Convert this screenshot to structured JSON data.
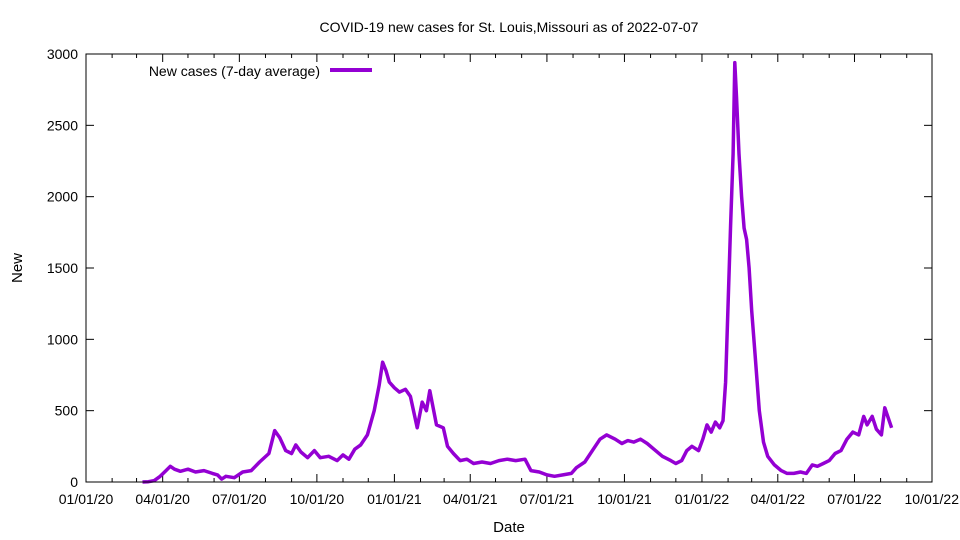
{
  "chart_data": {
    "type": "line",
    "title": "COVID-19 new cases for St. Louis,Missouri as of 2022-07-07",
    "xlabel": "Date",
    "ylabel": "New",
    "xlim": [
      "2020-01-01",
      "2022-10-01"
    ],
    "ylim": [
      0,
      3000
    ],
    "x_ticks": [
      "01/01/20",
      "04/01/20",
      "07/01/20",
      "10/01/20",
      "01/01/21",
      "04/01/21",
      "07/01/21",
      "10/01/21",
      "01/01/22",
      "04/01/22",
      "07/01/22",
      "10/01/22"
    ],
    "y_ticks": [
      0,
      500,
      1000,
      1500,
      2000,
      2500,
      3000
    ],
    "grid": false,
    "legend": {
      "position": "top-left"
    },
    "series": [
      {
        "name": "New cases (7-day average)",
        "color": "#9400d3",
        "points": [
          [
            "2020-03-08",
            0
          ],
          [
            "2020-03-15",
            2
          ],
          [
            "2020-03-22",
            10
          ],
          [
            "2020-03-29",
            40
          ],
          [
            "2020-04-05",
            80
          ],
          [
            "2020-04-10",
            110
          ],
          [
            "2020-04-15",
            90
          ],
          [
            "2020-04-22",
            75
          ],
          [
            "2020-05-01",
            90
          ],
          [
            "2020-05-10",
            70
          ],
          [
            "2020-05-20",
            80
          ],
          [
            "2020-05-30",
            60
          ],
          [
            "2020-06-05",
            50
          ],
          [
            "2020-06-10",
            20
          ],
          [
            "2020-06-15",
            40
          ],
          [
            "2020-06-25",
            30
          ],
          [
            "2020-07-05",
            70
          ],
          [
            "2020-07-15",
            80
          ],
          [
            "2020-07-25",
            140
          ],
          [
            "2020-08-05",
            200
          ],
          [
            "2020-08-12",
            360
          ],
          [
            "2020-08-18",
            310
          ],
          [
            "2020-08-25",
            220
          ],
          [
            "2020-09-01",
            200
          ],
          [
            "2020-09-06",
            260
          ],
          [
            "2020-09-12",
            210
          ],
          [
            "2020-09-20",
            170
          ],
          [
            "2020-09-28",
            220
          ],
          [
            "2020-10-05",
            170
          ],
          [
            "2020-10-15",
            180
          ],
          [
            "2020-10-25",
            150
          ],
          [
            "2020-11-01",
            190
          ],
          [
            "2020-11-08",
            160
          ],
          [
            "2020-11-15",
            230
          ],
          [
            "2020-11-22",
            260
          ],
          [
            "2020-11-30",
            330
          ],
          [
            "2020-12-08",
            500
          ],
          [
            "2020-12-14",
            680
          ],
          [
            "2020-12-18",
            840
          ],
          [
            "2020-12-22",
            780
          ],
          [
            "2020-12-26",
            700
          ],
          [
            "2021-01-01",
            660
          ],
          [
            "2021-01-07",
            630
          ],
          [
            "2021-01-14",
            650
          ],
          [
            "2021-01-20",
            600
          ],
          [
            "2021-01-28",
            380
          ],
          [
            "2021-02-03",
            560
          ],
          [
            "2021-02-08",
            500
          ],
          [
            "2021-02-12",
            640
          ],
          [
            "2021-02-20",
            400
          ],
          [
            "2021-02-28",
            380
          ],
          [
            "2021-03-05",
            250
          ],
          [
            "2021-03-12",
            200
          ],
          [
            "2021-03-20",
            150
          ],
          [
            "2021-03-28",
            160
          ],
          [
            "2021-04-05",
            130
          ],
          [
            "2021-04-15",
            140
          ],
          [
            "2021-04-25",
            130
          ],
          [
            "2021-05-05",
            150
          ],
          [
            "2021-05-15",
            160
          ],
          [
            "2021-05-25",
            150
          ],
          [
            "2021-06-05",
            160
          ],
          [
            "2021-06-12",
            80
          ],
          [
            "2021-06-22",
            70
          ],
          [
            "2021-07-01",
            50
          ],
          [
            "2021-07-10",
            40
          ],
          [
            "2021-07-20",
            50
          ],
          [
            "2021-07-30",
            60
          ],
          [
            "2021-08-05",
            100
          ],
          [
            "2021-08-15",
            140
          ],
          [
            "2021-08-25",
            230
          ],
          [
            "2021-09-02",
            300
          ],
          [
            "2021-09-10",
            330
          ],
          [
            "2021-09-20",
            300
          ],
          [
            "2021-09-28",
            270
          ],
          [
            "2021-10-05",
            290
          ],
          [
            "2021-10-12",
            280
          ],
          [
            "2021-10-20",
            300
          ],
          [
            "2021-10-28",
            270
          ],
          [
            "2021-11-05",
            230
          ],
          [
            "2021-11-15",
            180
          ],
          [
            "2021-11-25",
            150
          ],
          [
            "2021-12-01",
            130
          ],
          [
            "2021-12-08",
            150
          ],
          [
            "2021-12-14",
            220
          ],
          [
            "2021-12-20",
            250
          ],
          [
            "2021-12-28",
            220
          ],
          [
            "2022-01-02",
            300
          ],
          [
            "2022-01-07",
            400
          ],
          [
            "2022-01-12",
            350
          ],
          [
            "2022-01-17",
            420
          ],
          [
            "2022-01-22",
            380
          ],
          [
            "2022-01-26",
            430
          ],
          [
            "2022-01-29",
            700
          ],
          [
            "2022-02-01",
            1250
          ],
          [
            "2022-02-04",
            1800
          ],
          [
            "2022-02-07",
            2300
          ],
          [
            "2022-02-09",
            2940
          ],
          [
            "2022-02-11",
            2700
          ],
          [
            "2022-02-14",
            2300
          ],
          [
            "2022-02-17",
            2000
          ],
          [
            "2022-02-20",
            1780
          ],
          [
            "2022-02-23",
            1700
          ],
          [
            "2022-02-26",
            1500
          ],
          [
            "2022-03-01",
            1200
          ],
          [
            "2022-03-05",
            900
          ],
          [
            "2022-03-10",
            500
          ],
          [
            "2022-03-15",
            280
          ],
          [
            "2022-03-20",
            180
          ],
          [
            "2022-03-28",
            120
          ],
          [
            "2022-04-05",
            80
          ],
          [
            "2022-04-12",
            60
          ],
          [
            "2022-04-20",
            60
          ],
          [
            "2022-04-28",
            70
          ],
          [
            "2022-05-05",
            60
          ],
          [
            "2022-05-12",
            120
          ],
          [
            "2022-05-18",
            110
          ],
          [
            "2022-05-25",
            130
          ],
          [
            "2022-06-01",
            150
          ],
          [
            "2022-06-08",
            200
          ],
          [
            "2022-06-15",
            220
          ],
          [
            "2022-06-22",
            300
          ],
          [
            "2022-06-29",
            350
          ],
          [
            "2022-07-06",
            330
          ],
          [
            "2022-07-12",
            460
          ],
          [
            "2022-07-16",
            400
          ],
          [
            "2022-07-22",
            460
          ],
          [
            "2022-07-27",
            370
          ],
          [
            "2022-08-02",
            330
          ],
          [
            "2022-08-06",
            520
          ],
          [
            "2022-08-10",
            450
          ],
          [
            "2022-08-14",
            380
          ]
        ]
      }
    ]
  }
}
